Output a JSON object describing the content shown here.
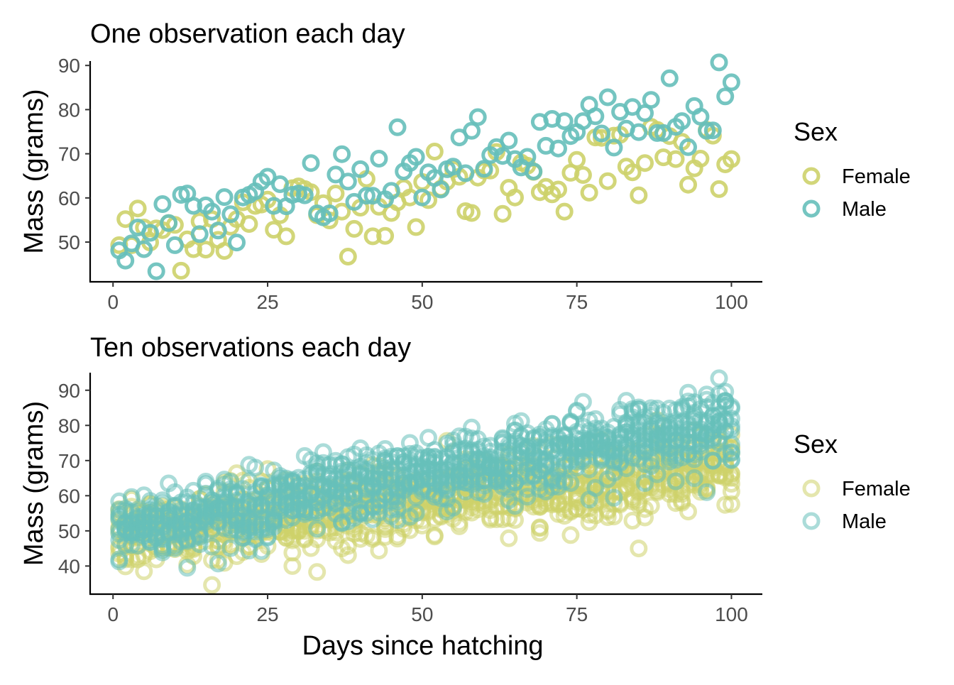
{
  "legend": {
    "title": "Sex",
    "items": [
      {
        "label": "Female",
        "color": "#CDD26A"
      },
      {
        "label": "Male",
        "color": "#66BFBA"
      }
    ]
  },
  "chart_data": [
    {
      "type": "scatter",
      "title": "One observation each day",
      "xlabel": "",
      "ylabel": "Mass (grams)",
      "xlim": [
        -3.7,
        105
      ],
      "ylim": [
        41,
        91
      ],
      "xticks": [
        0,
        25,
        50,
        75,
        100
      ],
      "yticks": [
        50,
        60,
        70,
        80,
        90
      ],
      "grid": false,
      "legend_position": "right",
      "marker": "open-circle",
      "series": [
        {
          "name": "Female",
          "color": "#CDD26A",
          "opacity": 0.9,
          "points": []
        },
        {
          "name": "Male",
          "color": "#66BFBA",
          "opacity": 0.9,
          "points": []
        }
      ]
    },
    {
      "type": "scatter",
      "title": "Ten observations each day",
      "xlabel": "Days since hatching",
      "ylabel": "Mass (grams)",
      "xlim": [
        -3.7,
        105
      ],
      "ylim": [
        32,
        95
      ],
      "xticks": [
        0,
        25,
        50,
        75,
        100
      ],
      "yticks": [
        40,
        50,
        60,
        70,
        80,
        90
      ],
      "grid": false,
      "legend_position": "right",
      "marker": "open-circle",
      "series": [
        {
          "name": "Female",
          "color": "#CDD26A",
          "opacity": 0.55,
          "points": []
        },
        {
          "name": "Male",
          "color": "#66BFBA",
          "opacity": 0.55,
          "points": []
        }
      ]
    }
  ]
}
